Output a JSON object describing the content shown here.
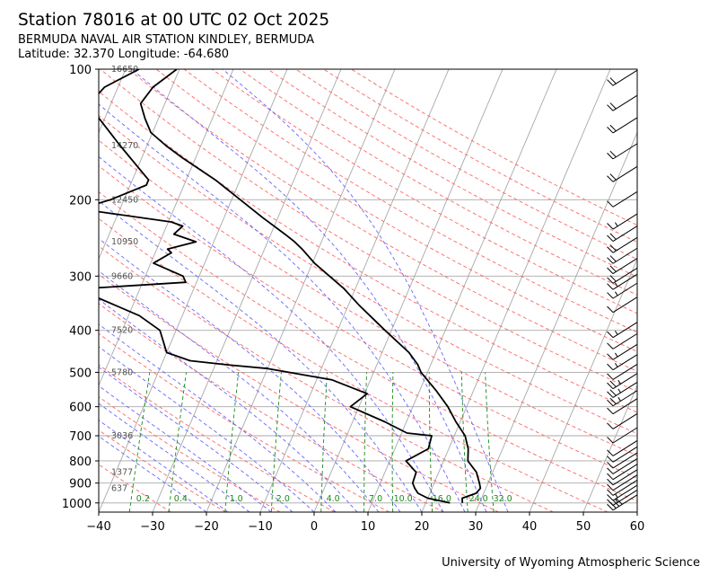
{
  "header": {
    "title": "Station 78016 at 00 UTC 02 Oct 2025",
    "station_name": "BERMUDA NAVAL AIR STATION KINDLEY, BERMUDA",
    "location": "Latitude: 32.370 Longitude: -64.680"
  },
  "footer": {
    "credit": "University of Wyoming Atmospheric Science"
  },
  "chart_data": {
    "type": "line",
    "xlim": [
      -40,
      60
    ],
    "ylim": [
      1050,
      100
    ],
    "y_scale": "log",
    "x_ticks": [
      "−40",
      "−30",
      "−20",
      "−10",
      "0",
      "10",
      "20",
      "30",
      "40",
      "50",
      "60"
    ],
    "y_ticks": [
      {
        "p": 100,
        "label": "100"
      },
      {
        "p": 200,
        "label": "200"
      },
      {
        "p": 300,
        "label": "300"
      },
      {
        "p": 400,
        "label": "400"
      },
      {
        "p": 500,
        "label": "500"
      },
      {
        "p": 600,
        "label": "600"
      },
      {
        "p": 700,
        "label": "700"
      },
      {
        "p": 800,
        "label": "800"
      },
      {
        "p": 900,
        "label": "900"
      },
      {
        "p": 1000,
        "label": "1000"
      }
    ],
    "height_labels": [
      {
        "p": 100,
        "label": "16650"
      },
      {
        "p": 150,
        "label": "14270"
      },
      {
        "p": 200,
        "label": "12450"
      },
      {
        "p": 250,
        "label": "10950"
      },
      {
        "p": 300,
        "label": "9660"
      },
      {
        "p": 400,
        "label": "7520"
      },
      {
        "p": 500,
        "label": "5780"
      },
      {
        "p": 700,
        "label": "3036"
      },
      {
        "p": 850,
        "label": "1377"
      },
      {
        "p": 925,
        "label": "637"
      }
    ],
    "mixing_ratio_labels": [
      {
        "w": 0.2,
        "label": "0.2",
        "t": -32.5
      },
      {
        "w": 0.4,
        "label": "0.4",
        "t": -25.5
      },
      {
        "w": 1.0,
        "label": "1.0",
        "t": -15.2
      },
      {
        "w": 2.0,
        "label": "2.0",
        "t": -6.5
      },
      {
        "w": 4.0,
        "label": "4.0",
        "t": 2.8
      },
      {
        "w": 7.0,
        "label": "7.0",
        "t": 10.7
      },
      {
        "w": 10.0,
        "label": "10.0",
        "t": 15.8
      },
      {
        "w": 16.0,
        "label": "16.0",
        "t": 23.0
      },
      {
        "w": 24.0,
        "label": "24.0",
        "t": 29.8
      },
      {
        "w": 32.0,
        "label": "32.0",
        "t": 34.3
      }
    ],
    "series": [
      {
        "role": "temperature",
        "color": "#000000",
        "points": [
          [
            1000,
            26.8
          ],
          [
            975,
            26.4
          ],
          [
            950,
            28.6
          ],
          [
            925,
            29.0
          ],
          [
            900,
            28.4
          ],
          [
            850,
            27.0
          ],
          [
            800,
            24.5
          ],
          [
            750,
            23.6
          ],
          [
            700,
            22.0
          ],
          [
            650,
            19.2
          ],
          [
            600,
            16.5
          ],
          [
            550,
            13.0
          ],
          [
            500,
            8.8
          ],
          [
            480,
            7.6
          ],
          [
            450,
            5.0
          ],
          [
            400,
            -1.2
          ],
          [
            350,
            -8.0
          ],
          [
            320,
            -12.2
          ],
          [
            300,
            -15.8
          ],
          [
            280,
            -19.6
          ],
          [
            260,
            -23.0
          ],
          [
            250,
            -25.0
          ],
          [
            240,
            -27.4
          ],
          [
            220,
            -32.8
          ],
          [
            200,
            -38.4
          ],
          [
            180,
            -44.6
          ],
          [
            160,
            -52.5
          ],
          [
            150,
            -56.5
          ],
          [
            140,
            -60.3
          ],
          [
            130,
            -62.5
          ],
          [
            120,
            -64.5
          ],
          [
            110,
            -63.5
          ],
          [
            100,
            -60.5
          ]
        ]
      },
      {
        "role": "dewpoint",
        "color": "#000000",
        "points": [
          [
            1000,
            24.5
          ],
          [
            975,
            20.0
          ],
          [
            950,
            17.8
          ],
          [
            925,
            16.8
          ],
          [
            900,
            16.0
          ],
          [
            850,
            15.8
          ],
          [
            800,
            13.0
          ],
          [
            750,
            16.2
          ],
          [
            700,
            15.8
          ],
          [
            690,
            11.0
          ],
          [
            650,
            6.0
          ],
          [
            600,
            -1.6
          ],
          [
            560,
            0.5
          ],
          [
            520,
            -7.2
          ],
          [
            490,
            -20.0
          ],
          [
            480,
            -28.0
          ],
          [
            470,
            -35.0
          ],
          [
            450,
            -40.0
          ],
          [
            400,
            -43.0
          ],
          [
            370,
            -48.0
          ],
          [
            330,
            -59.0
          ],
          [
            320,
            -59.5
          ],
          [
            310,
            -42.0
          ],
          [
            300,
            -43.0
          ],
          [
            280,
            -49.5
          ],
          [
            265,
            -47.0
          ],
          [
            260,
            -48.0
          ],
          [
            250,
            -43.3
          ],
          [
            240,
            -48.0
          ],
          [
            230,
            -47.0
          ],
          [
            225,
            -49.5
          ],
          [
            210,
            -67.5
          ],
          [
            200,
            -62.5
          ],
          [
            185,
            -57.0
          ],
          [
            180,
            -57.0
          ],
          [
            150,
            -65.0
          ],
          [
            130,
            -71.0
          ],
          [
            120,
            -74.0
          ],
          [
            110,
            -72.5
          ],
          [
            100,
            -67.5
          ]
        ]
      }
    ],
    "wind_barbs": [
      {
        "p": 1000,
        "speed_kt": 40
      },
      {
        "p": 975,
        "speed_kt": 15
      },
      {
        "p": 950,
        "speed_kt": 15
      },
      {
        "p": 925,
        "speed_kt": 10
      },
      {
        "p": 900,
        "speed_kt": 10
      },
      {
        "p": 875,
        "speed_kt": 10
      },
      {
        "p": 850,
        "speed_kt": 10
      },
      {
        "p": 825,
        "speed_kt": 10
      },
      {
        "p": 800,
        "speed_kt": 10
      },
      {
        "p": 775,
        "speed_kt": 10
      },
      {
        "p": 750,
        "speed_kt": 10
      },
      {
        "p": 700,
        "speed_kt": 10
      },
      {
        "p": 650,
        "speed_kt": 10
      },
      {
        "p": 600,
        "speed_kt": 10
      },
      {
        "p": 575,
        "speed_kt": 25
      },
      {
        "p": 550,
        "speed_kt": 25
      },
      {
        "p": 525,
        "speed_kt": 25
      },
      {
        "p": 500,
        "speed_kt": 10
      },
      {
        "p": 475,
        "speed_kt": 15
      },
      {
        "p": 450,
        "speed_kt": 15
      },
      {
        "p": 425,
        "speed_kt": 10
      },
      {
        "p": 400,
        "speed_kt": 15
      },
      {
        "p": 350,
        "speed_kt": 10
      },
      {
        "p": 325,
        "speed_kt": 15
      },
      {
        "p": 310,
        "speed_kt": 15
      },
      {
        "p": 300,
        "speed_kt": 20
      },
      {
        "p": 285,
        "speed_kt": 20
      },
      {
        "p": 270,
        "speed_kt": 20
      },
      {
        "p": 255,
        "speed_kt": 20
      },
      {
        "p": 240,
        "speed_kt": 20
      },
      {
        "p": 225,
        "speed_kt": 15
      },
      {
        "p": 200,
        "speed_kt": 10
      },
      {
        "p": 175,
        "speed_kt": 20
      },
      {
        "p": 155,
        "speed_kt": 20
      },
      {
        "p": 135,
        "speed_kt": 20
      },
      {
        "p": 120,
        "speed_kt": 20
      },
      {
        "p": 105,
        "speed_kt": 20
      }
    ],
    "grid": true,
    "colors": {
      "isotherm": "#a8a8a8",
      "isobar": "#a8a8a8",
      "dry_adiabat": "#ff5555",
      "moist_adiabat": "#5555ff",
      "mixing_ratio": "#1a8a1a",
      "height_label": "#555555"
    }
  }
}
